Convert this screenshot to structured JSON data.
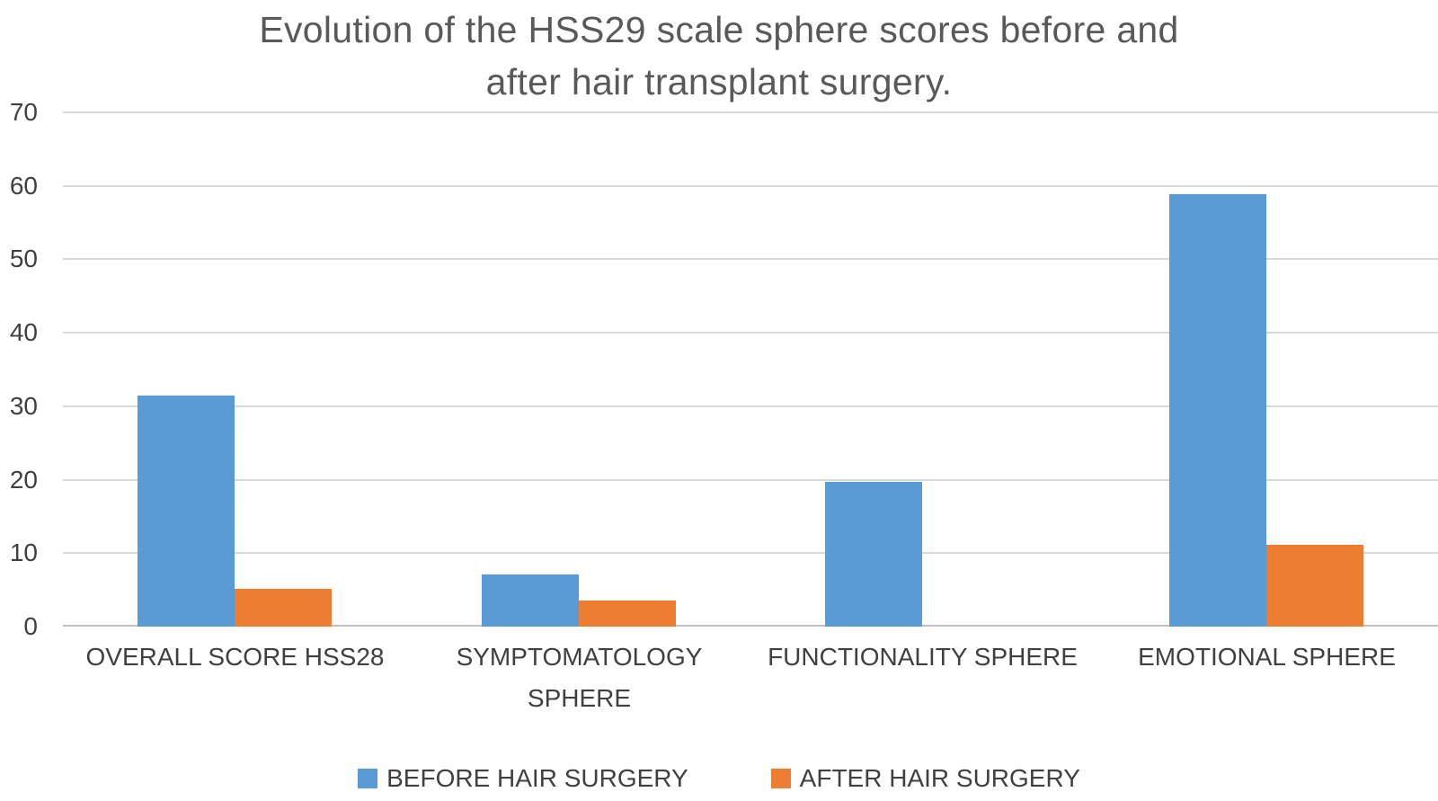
{
  "title_lines": [
    "Evolution of the HSS29 scale sphere scores before and",
    "after hair transplant surgery."
  ],
  "chart_data": {
    "type": "bar",
    "title": "Evolution of the HSS29 scale sphere scores before and after hair transplant surgery.",
    "categories": [
      "OVERALL SCORE HSS28",
      "SYMPTOMATOLOGY SPHERE",
      "FUNCTIONALITY SPHERE",
      "EMOTIONAL SPHERE"
    ],
    "categories_wrapped": [
      [
        "OVERALL SCORE HSS28"
      ],
      [
        "SYMPTOMATOLOGY",
        "SPHERE"
      ],
      [
        "FUNCTIONALITY SPHERE"
      ],
      [
        "EMOTIONAL SPHERE"
      ]
    ],
    "series": [
      {
        "name": "BEFORE HAIR SURGERY",
        "color": "#5B9BD5",
        "values": [
          31.4,
          7.1,
          19.7,
          58.9
        ]
      },
      {
        "name": "AFTER HAIR SURGERY",
        "color": "#ED7D31",
        "values": [
          5.1,
          3.5,
          0,
          11.1
        ]
      }
    ],
    "xlabel": "",
    "ylabel": "",
    "ylim": [
      0,
      70
    ],
    "yticks": [
      0,
      10,
      20,
      30,
      40,
      50,
      60,
      70
    ],
    "grid": true,
    "legend_position": "bottom",
    "colors": {
      "before_series": "#5B9BD5",
      "after_series": "#ED7D31",
      "gridline": "#D9D9D9",
      "axis_line": "#C0C0C0",
      "title_text": "#595959",
      "label_text": "#404040",
      "background": "#FFFFFF"
    }
  }
}
